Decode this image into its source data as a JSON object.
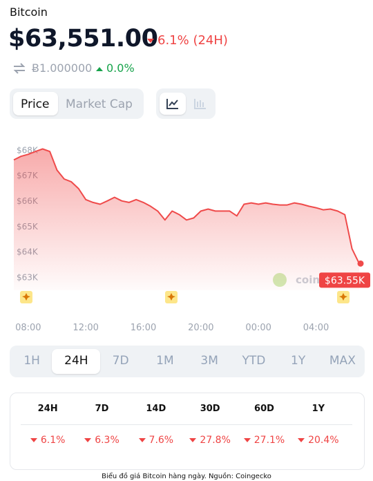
{
  "header": {
    "name": "Bitcoin",
    "price": "$63,551.00",
    "change": "6.1% (24H)",
    "btc_amount": "Ƀ1.000000",
    "btc_change": "0.0%"
  },
  "view_tabs": [
    "Price",
    "Market Cap"
  ],
  "chart_data": {
    "type": "line",
    "categories": [
      null,
      null,
      "08:00",
      null,
      null,
      null,
      null,
      null,
      null,
      null,
      "12:00",
      null,
      null,
      null,
      null,
      null,
      null,
      null,
      "16:00",
      null,
      null,
      null,
      null,
      null,
      null,
      null,
      "20:00",
      null,
      null,
      null,
      null,
      null,
      null,
      null,
      "00:00",
      null,
      null,
      null,
      null,
      null,
      null,
      null,
      "04:00",
      null,
      null,
      null,
      null,
      null,
      null
    ],
    "series": [
      {
        "color": "#ef4a4a",
        "values": [
          67620,
          67760,
          67840,
          67950,
          68050,
          67950,
          67220,
          66870,
          66760,
          66490,
          66060,
          65950,
          65880,
          66010,
          66150,
          66010,
          65950,
          66060,
          65950,
          65800,
          65610,
          65260,
          65610,
          65470,
          65260,
          65340,
          65610,
          65690,
          65610,
          65610,
          65610,
          65420,
          65880,
          65930,
          65880,
          65930,
          65880,
          65850,
          65850,
          65930,
          65880,
          65800,
          65740,
          65660,
          65690,
          65610,
          65470,
          64130,
          63550
        ]
      }
    ],
    "ylim": [
      62500,
      68200
    ],
    "yticks": [
      {
        "value": 63000,
        "label": "$63K"
      },
      {
        "value": 64000,
        "label": "$64K"
      },
      {
        "value": 65000,
        "label": "$65K"
      },
      {
        "value": 66000,
        "label": "$66K"
      },
      {
        "value": 67000,
        "label": "$67K"
      },
      {
        "value": 68000,
        "label": "$68K"
      }
    ],
    "last_label": "$63.55K",
    "watermark": "coin"
  },
  "ranges": [
    "1H",
    "24H",
    "7D",
    "1M",
    "3M",
    "YTD",
    "1Y",
    "MAX"
  ],
  "changes_table": {
    "headers": [
      "24H",
      "7D",
      "14D",
      "30D",
      "60D",
      "1Y"
    ],
    "values": [
      "6.1%",
      "6.3%",
      "7.6%",
      "27.8%",
      "27.1%",
      "20.4%"
    ]
  },
  "caption": "Biểu đồ giá Bitcoin hàng ngày. Nguồn: Coingecko"
}
